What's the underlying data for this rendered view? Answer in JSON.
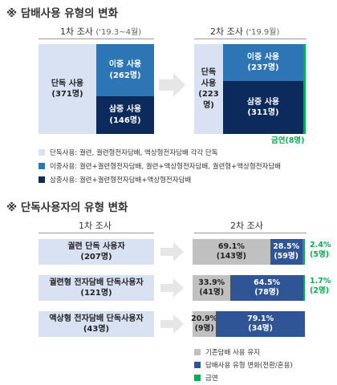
{
  "section1": {
    "title": "※ 담배사용 유형의 변화",
    "phase1": {
      "label": "1차 조사",
      "period": "('19.3~4월)"
    },
    "phase2": {
      "label": "2차 조사",
      "period": "('19.9월)"
    },
    "first": {
      "single": {
        "name": "단독 사용",
        "count": "(371명)"
      },
      "dual": {
        "name": "이중 사용",
        "count": "(262명)"
      },
      "triple": {
        "name": "삼중 사용",
        "count": "(146명)"
      }
    },
    "second": {
      "single": {
        "name1": "단독",
        "name2": "사용",
        "count": "(223명)"
      },
      "dual": {
        "name": "이중 사용",
        "count": "(237명)"
      },
      "triple": {
        "name": "삼중 사용",
        "count": "(311명)"
      },
      "quit": "금연(8명)"
    },
    "legend": [
      "단독사용: 궐련, 궐련형전자담배, 액상형전자담배 각각 단독",
      "이중사용: 궐련+궐련형전자담배, 궐련+액상형전자담배, 궐련형+액상형전자담배",
      "삼중사용: 궐련+궐련형전자담배+액상형전자담배"
    ]
  },
  "section2": {
    "title": "※ 단독사용자의 유형 변화",
    "phase1": "1차 조사",
    "phase2": "2차 조사",
    "rows": [
      {
        "label1": "궐련 단독 사용자",
        "label2": "(207명)",
        "keep_pct": "69.1%",
        "keep_n": "(143명)",
        "change_pct": "28.5%",
        "change_n": "(59명)",
        "quit_pct": "2.4%",
        "quit_n": "(5명)"
      },
      {
        "label1": "궐련형 전자담배 단독사용자",
        "label2": "(121명)",
        "keep_pct": "33.9%",
        "keep_n": "(41명)",
        "change_pct": "64.5%",
        "change_n": "(78명)",
        "quit_pct": "1.7%",
        "quit_n": "(2명)"
      },
      {
        "label1": "액상형 전자담배 단독사용자",
        "label2": "(43명)",
        "keep_pct": "20.9%",
        "keep_n": "(9명)",
        "change_pct": "79.1%",
        "change_n": "(34명)",
        "quit_pct": "",
        "quit_n": ""
      }
    ],
    "legend": [
      "기존담배 사용 유지",
      "담배사용 유형 변화(전환/혼용)",
      "금연"
    ]
  },
  "colors": {
    "light": "#d9e2f3",
    "mid": "#2e75b6",
    "dark": "#0d2a5c",
    "gray": "#c0c0c0",
    "blue2": "#2f5597",
    "green": "#00b050"
  },
  "chart_data": [
    {
      "type": "bar",
      "categories": [
        "1차 조사",
        "2차 조사"
      ],
      "series": [
        {
          "name": "단독 사용",
          "values": [
            371,
            223
          ]
        },
        {
          "name": "이중 사용",
          "values": [
            262,
            237
          ]
        },
        {
          "name": "삼중 사용",
          "values": [
            146,
            311
          ]
        },
        {
          "name": "금연",
          "values": [
            0,
            8
          ]
        }
      ]
    },
    {
      "type": "bar",
      "categories": [
        "궐련 단독 사용자",
        "궐련형 전자담배 단독사용자",
        "액상형 전자담배 단독사용자"
      ],
      "series": [
        {
          "name": "기존담배 사용 유지",
          "values": [
            69.1,
            33.9,
            20.9
          ]
        },
        {
          "name": "담배사용 유형 변화(전환/혼용)",
          "values": [
            28.5,
            64.5,
            79.1
          ]
        },
        {
          "name": "금연",
          "values": [
            2.4,
            1.7,
            0
          ]
        }
      ]
    }
  ]
}
